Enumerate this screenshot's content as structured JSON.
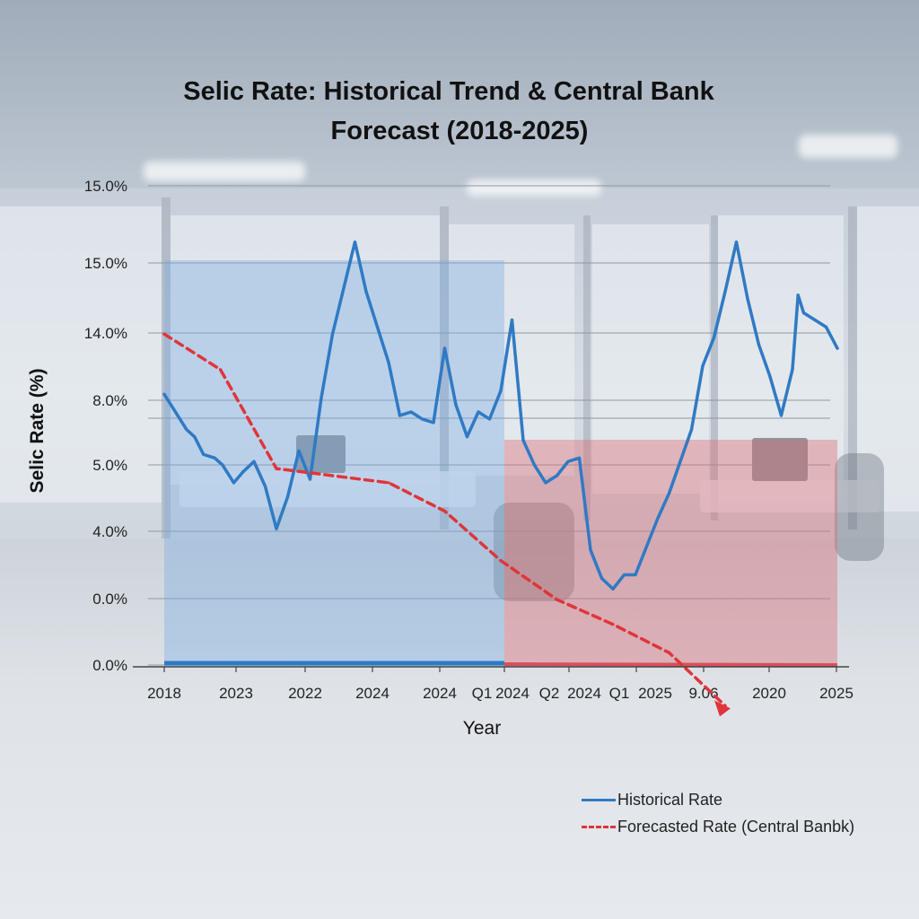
{
  "chart_data": {
    "type": "line",
    "title_lines": [
      "Selic Rate: Historical Trend & Central Bank",
      "Forecast (2018-2025)"
    ],
    "xlabel": "Year",
    "ylabel": "Selic Rate (%)",
    "y_tick_labels": [
      "0.0%",
      "0.0%",
      "4.0%",
      "5.0%",
      "8.0%",
      "14.0%",
      "15.0%",
      "15.0%"
    ],
    "x_tick_labels": [
      "2018",
      "2023",
      "2022",
      "2024",
      "2024",
      "Q1",
      "2024",
      "Q2",
      "2024",
      "Q1",
      "2025",
      "9.06",
      "2020",
      "2025"
    ],
    "grid": true,
    "legend_position": "bottom-right",
    "series": [
      {
        "name": "Historical Rate",
        "color": "#2f7ac4",
        "style": "solid",
        "x": [
          0,
          0.1,
          0.2,
          0.27,
          0.35,
          0.45,
          0.52,
          0.62,
          0.7,
          0.8,
          0.9,
          1.0,
          1.1,
          1.2,
          1.3,
          1.4,
          1.5,
          1.6,
          1.7,
          1.8,
          1.9,
          2.0,
          2.1,
          2.2,
          2.3,
          2.4,
          2.5,
          2.6,
          2.7,
          2.8,
          2.9,
          3.0,
          3.1,
          3.2,
          3.3,
          3.4,
          3.5,
          3.6,
          3.7,
          3.8,
          3.9,
          4.0,
          4.1,
          4.2,
          4.3,
          4.4,
          4.5,
          4.6,
          4.7,
          4.8,
          4.9,
          5.0,
          5.1,
          5.2,
          5.3,
          5.4,
          5.5,
          5.6,
          5.65,
          5.7,
          5.8,
          5.9,
          6.0
        ],
        "values": [
          12.7,
          12.2,
          11.7,
          11.5,
          11.0,
          10.9,
          10.7,
          10.2,
          10.5,
          10.8,
          10.1,
          8.9,
          9.8,
          11.1,
          10.3,
          12.6,
          14.4,
          15.7,
          17.0,
          15.6,
          14.6,
          13.6,
          12.1,
          12.2,
          12.0,
          11.9,
          14.0,
          12.4,
          11.5,
          12.2,
          12.0,
          12.8,
          14.8,
          11.4,
          10.7,
          10.2,
          10.4,
          10.8,
          10.9,
          8.3,
          7.5,
          7.2,
          7.6,
          7.6,
          8.4,
          9.2,
          9.9,
          10.8,
          11.7,
          13.5,
          14.3,
          15.6,
          17.0,
          15.4,
          14.1,
          13.2,
          12.1,
          13.4,
          15.5,
          15.0,
          14.8,
          14.6,
          14.0
        ]
      },
      {
        "name": "Forecasted Rate (Central Banbk)",
        "color": "#e0353a",
        "style": "dashed",
        "x": [
          0,
          0.5,
          1.0,
          1.5,
          2.0,
          2.5,
          3.0,
          3.5,
          4.0,
          4.5,
          5.0
        ],
        "values": [
          14.4,
          13.4,
          10.6,
          10.4,
          10.2,
          9.4,
          8.0,
          6.9,
          6.2,
          5.4,
          3.9
        ]
      }
    ]
  }
}
